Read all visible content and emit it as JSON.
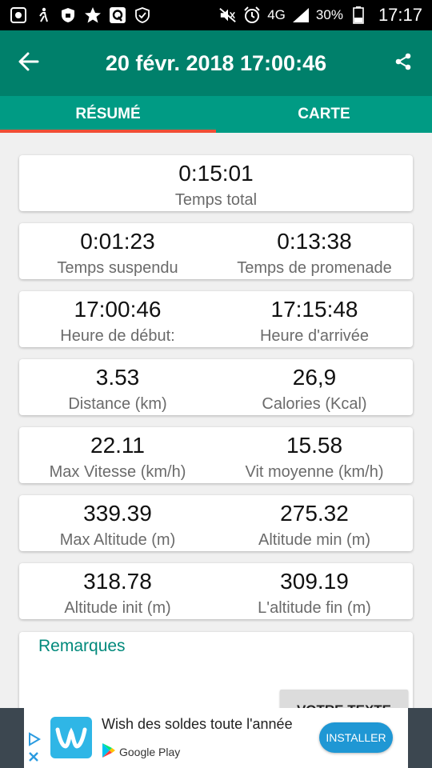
{
  "status_bar": {
    "network": "4G",
    "battery": "30%",
    "time": "17:17",
    "icons": [
      "gallery-icon",
      "walk-icon",
      "shield-icon",
      "star-icon",
      "quora-icon",
      "vpn-icon",
      "mute-icon",
      "alarm-icon",
      "signal-icon",
      "battery-icon"
    ]
  },
  "app_bar": {
    "title": "20 févr. 2018 17:00:46",
    "back_icon": "arrow-back-icon",
    "share_icon": "share-icon"
  },
  "tabs": [
    {
      "label": "RÉSUMÉ",
      "active": true
    },
    {
      "label": "CARTE",
      "active": false
    }
  ],
  "stats": {
    "total": {
      "value": "0:15:01",
      "label": "Temps total"
    },
    "rows": [
      [
        {
          "value": "0:01:23",
          "label": "Temps suspendu"
        },
        {
          "value": "0:13:38",
          "label": "Temps de promenade"
        }
      ],
      [
        {
          "value": "17:00:46",
          "label": "Heure de début:"
        },
        {
          "value": "17:15:48",
          "label": "Heure d'arrivée"
        }
      ],
      [
        {
          "value": "3.53",
          "label": "Distance (km)"
        },
        {
          "value": "26,9",
          "label": "Calories (Kcal)"
        }
      ],
      [
        {
          "value": "22.11",
          "label": "Max Vitesse (km/h)"
        },
        {
          "value": "15.58",
          "label": "Vit moyenne (km/h)"
        }
      ],
      [
        {
          "value": "339.39",
          "label": "Max Altitude (m)"
        },
        {
          "value": "275.32",
          "label": "Altitude min (m)"
        }
      ],
      [
        {
          "value": "318.78",
          "label": "Altitude init (m)"
        },
        {
          "value": "309.19",
          "label": "L'altitude fin (m)"
        }
      ]
    ]
  },
  "notes": {
    "title": "Remarques",
    "button_label": "VOTRE TEXTE"
  },
  "ad": {
    "text": "Wish des soldes toute l'année",
    "store": "Google Play",
    "button": "INSTALLER"
  },
  "colors": {
    "app_bar": "#00806b",
    "tabs": "#009b84",
    "tab_indicator": "#f04e36",
    "accent_text": "#00897b"
  }
}
